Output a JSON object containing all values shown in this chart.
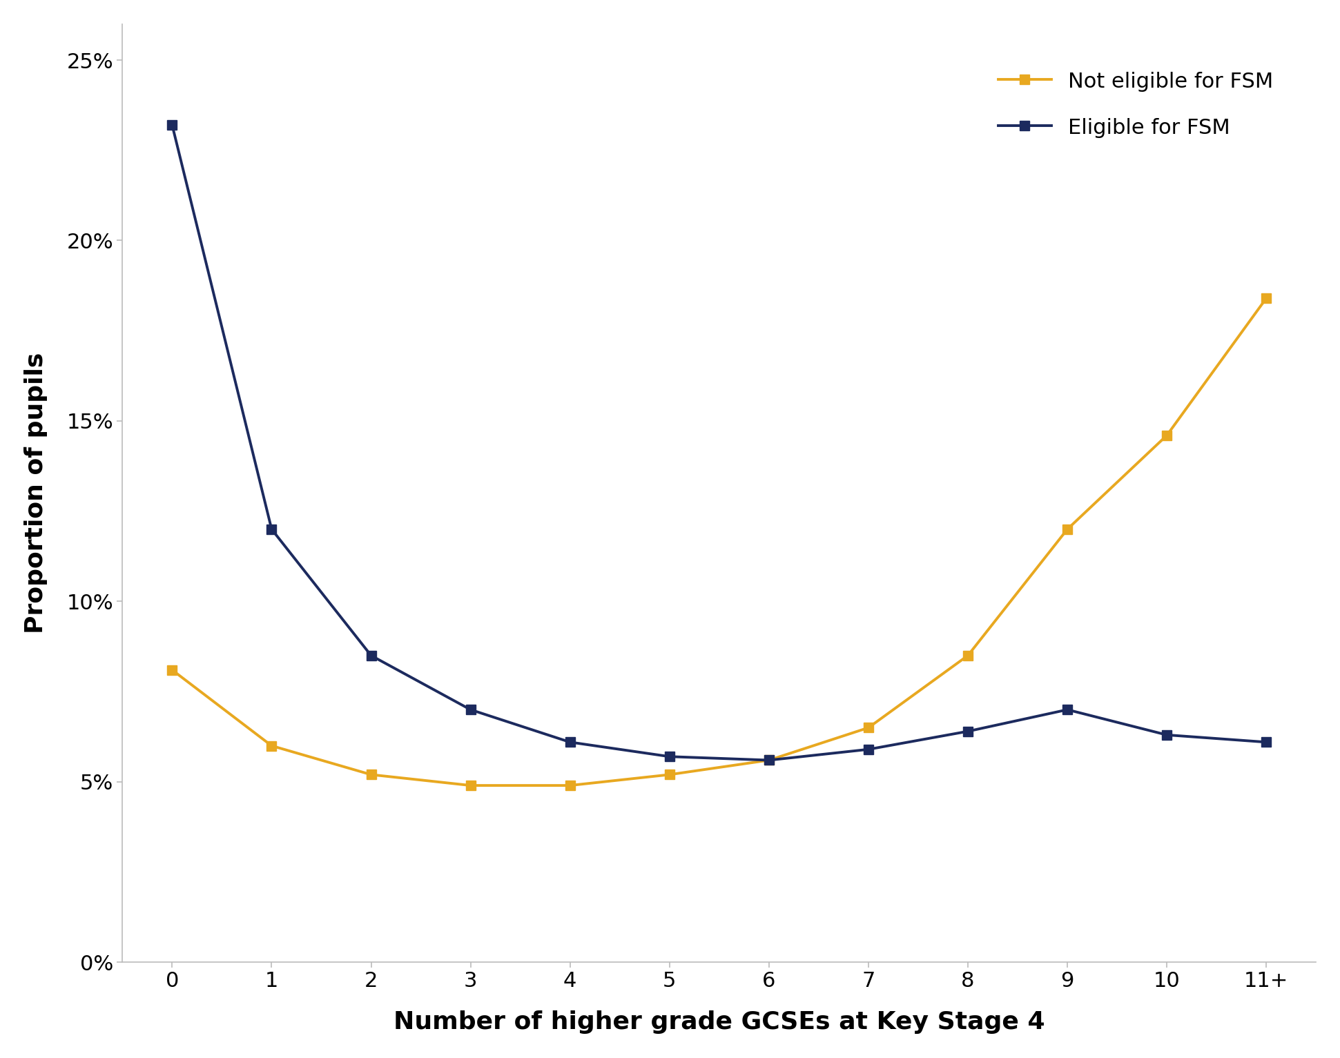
{
  "x_labels": [
    "0",
    "1",
    "2",
    "3",
    "4",
    "5",
    "6",
    "7",
    "8",
    "9",
    "10",
    "11+"
  ],
  "x_values": [
    0,
    1,
    2,
    3,
    4,
    5,
    6,
    7,
    8,
    9,
    10,
    11
  ],
  "not_eligible_fsm": [
    0.081,
    0.06,
    0.052,
    0.049,
    0.049,
    0.052,
    0.056,
    0.065,
    0.085,
    0.12,
    0.146,
    0.184
  ],
  "eligible_fsm": [
    0.232,
    0.12,
    0.085,
    0.07,
    0.061,
    0.057,
    0.056,
    0.059,
    0.064,
    0.07,
    0.063,
    0.061
  ],
  "not_eligible_color": "#E8A820",
  "eligible_color": "#1C2A5E",
  "not_eligible_label": "Not eligible for FSM",
  "eligible_label": "Eligible for FSM",
  "xlabel": "Number of higher grade GCSEs at Key Stage 4",
  "ylabel": "Proportion of pupils",
  "ylim": [
    0,
    0.26
  ],
  "yticks": [
    0,
    0.05,
    0.1,
    0.15,
    0.2,
    0.25
  ],
  "ytick_labels": [
    "0%",
    "5%",
    "10%",
    "15%",
    "20%",
    "25%"
  ],
  "marker": "s",
  "marker_size": 10,
  "linewidth": 2.8,
  "background_color": "#ffffff",
  "legend_fontsize": 22,
  "axis_label_fontsize": 26,
  "tick_fontsize": 22
}
